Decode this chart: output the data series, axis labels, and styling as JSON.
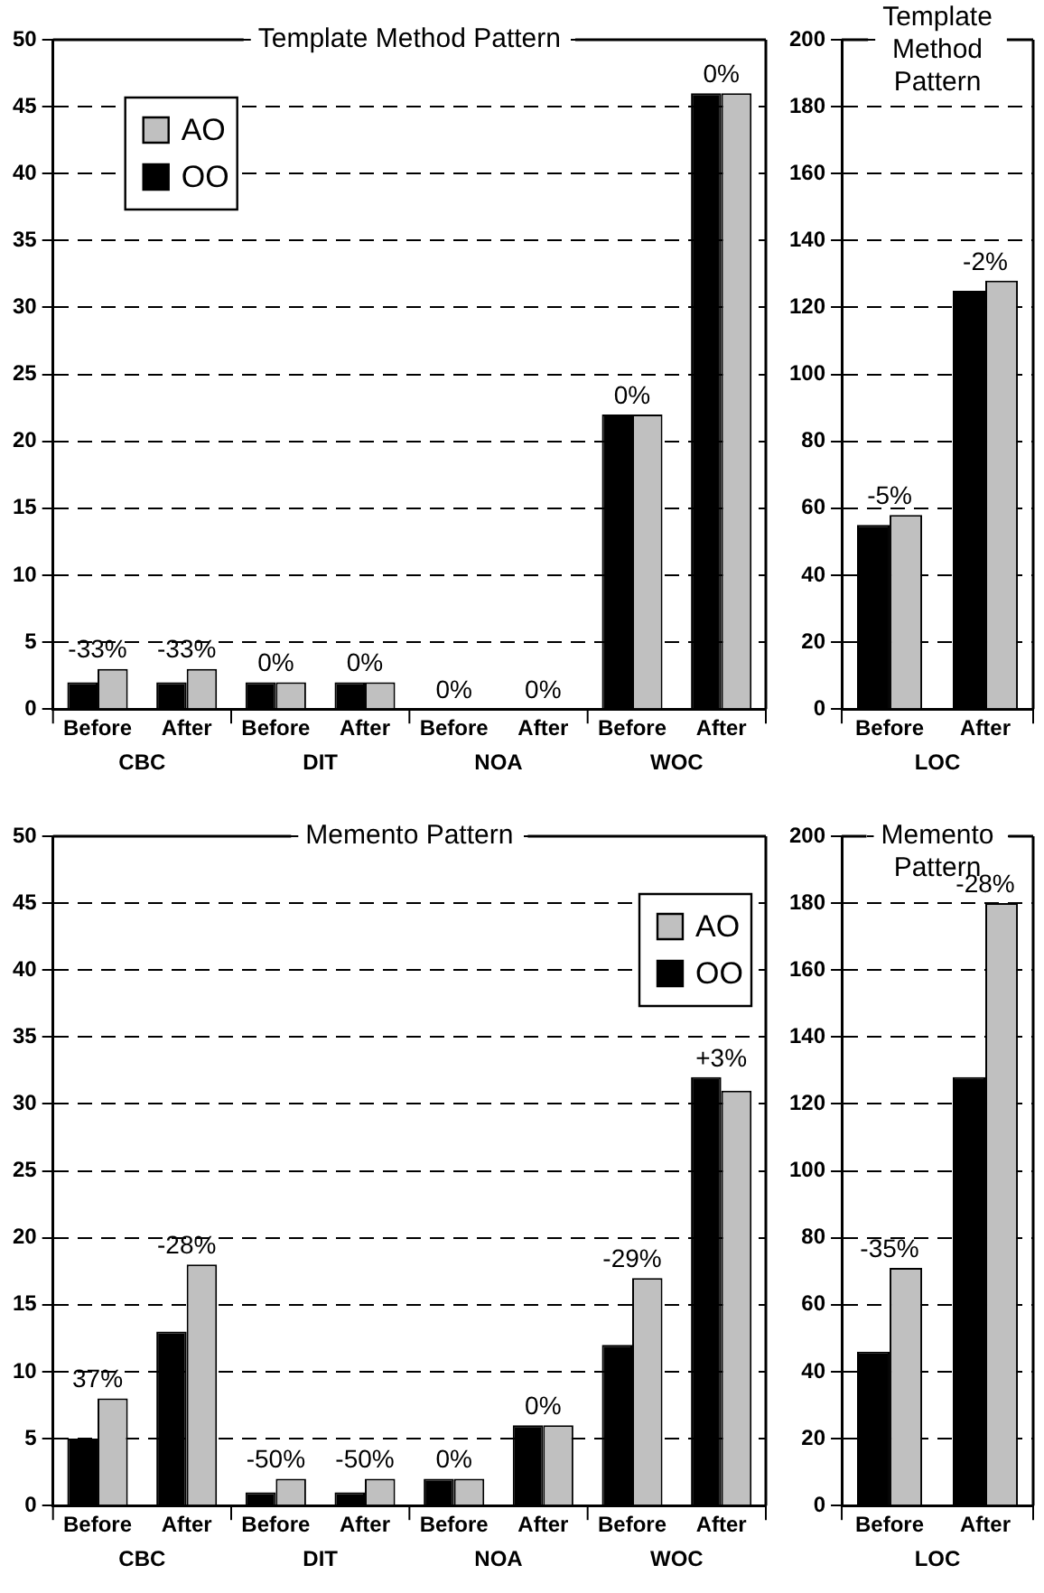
{
  "chart_data": [
    {
      "type": "bar",
      "title": "Template Method Pattern",
      "categories": [
        "Before",
        "After",
        "Before",
        "After",
        "Before",
        "After",
        "Before",
        "After"
      ],
      "series": [
        {
          "name": "OO",
          "color": "#000000",
          "values": [
            2,
            2,
            2,
            2,
            0,
            0,
            22,
            46
          ]
        },
        {
          "name": "AO",
          "color": "#c0c0c0",
          "values": [
            3,
            3,
            2,
            2,
            0,
            0,
            22,
            46
          ]
        }
      ],
      "ylim": [
        0,
        50
      ],
      "yticks": [
        0,
        5,
        10,
        15,
        20,
        25,
        30,
        35,
        40,
        45,
        50
      ],
      "grid": "y",
      "legend": "top left",
      "annotations": [
        "CBC",
        "DIT",
        "NOA",
        "WOC",
        "-33%",
        "-33%",
        "0%",
        "0%",
        "0%",
        "0%",
        "0%",
        "0%"
      ]
    },
    {
      "type": "bar",
      "title": "Template Method Pattern",
      "categories": [
        "Before",
        "After"
      ],
      "series": [
        {
          "color": "#000000",
          "values": [
            55,
            125
          ]
        },
        {
          "color": "#c0c0c0",
          "values": [
            58,
            128
          ]
        }
      ],
      "ylim": [
        0,
        200
      ],
      "yticks": [
        0,
        20,
        40,
        60,
        80,
        100,
        120,
        140,
        160,
        180,
        200
      ],
      "grid": "y",
      "annotations": [
        "LOC",
        "-5%",
        "-2%"
      ]
    },
    {
      "type": "bar",
      "title": "Memento Pattern",
      "categories": [
        "Before",
        "After",
        "Before",
        "After",
        "Before",
        "After",
        "Before",
        "After"
      ],
      "series": [
        {
          "name": "OO",
          "color": "#000000",
          "values": [
            5,
            13,
            1,
            1,
            2,
            6,
            12,
            32
          ]
        },
        {
          "name": "AO",
          "color": "#c0c0c0",
          "values": [
            8,
            18,
            2,
            2,
            2,
            6,
            17,
            31
          ]
        }
      ],
      "ylim": [
        0,
        50
      ],
      "yticks": [
        0,
        5,
        10,
        15,
        20,
        25,
        30,
        35,
        40,
        45,
        50
      ],
      "grid": "y",
      "legend": "top right",
      "annotations": [
        "CBC",
        "DIT",
        "NOA",
        "WOC",
        "37%",
        "-28%",
        "-50%",
        "-50%",
        "0%",
        "0%",
        "-29%",
        "+3%"
      ]
    },
    {
      "type": "bar",
      "title": "Memento Pattern",
      "categories": [
        "Before",
        "After"
      ],
      "series": [
        {
          "color": "#000000",
          "values": [
            46,
            128
          ]
        },
        {
          "color": "#c0c0c0",
          "values": [
            71,
            180
          ]
        }
      ],
      "ylim": [
        0,
        200
      ],
      "yticks": [
        0,
        20,
        40,
        60,
        80,
        100,
        120,
        140,
        160,
        180,
        200
      ],
      "grid": "y",
      "annotations": [
        "LOC",
        "-35%",
        "-28%"
      ]
    }
  ]
}
